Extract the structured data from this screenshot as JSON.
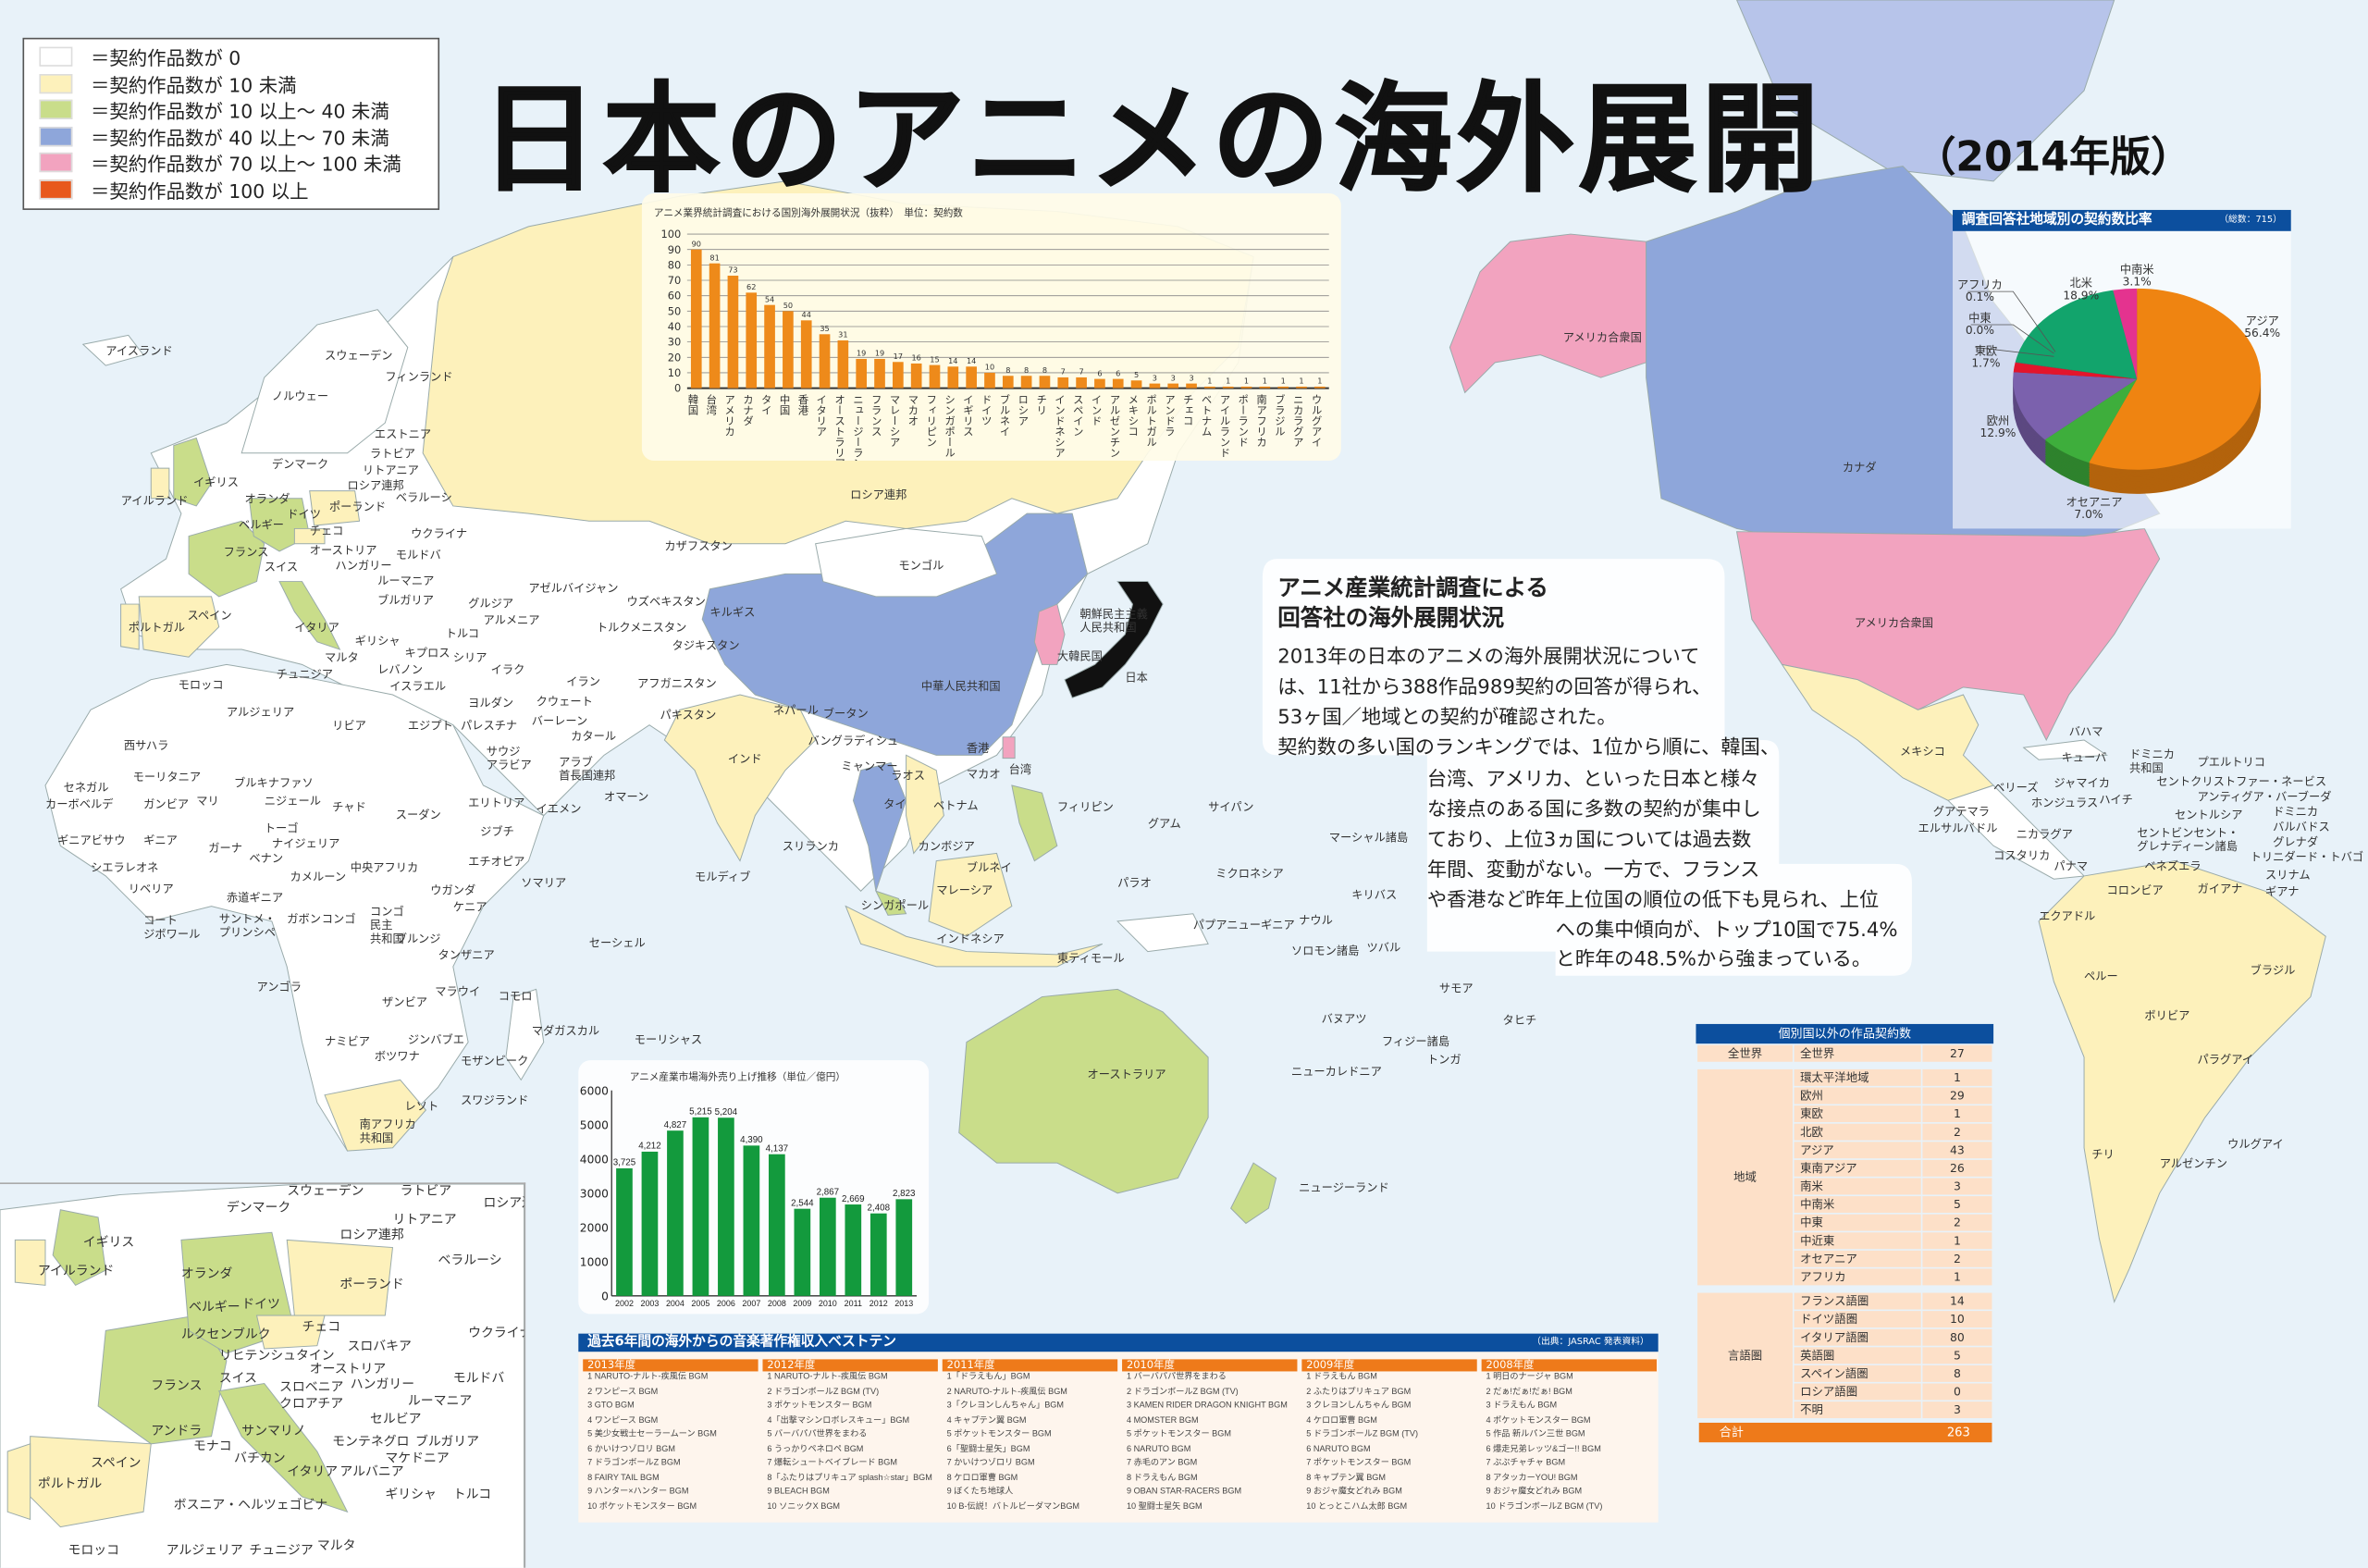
{
  "title": "日本のアニメの海外展開",
  "subtitle": "（2014年版）",
  "colors": {
    "zero": "#ffffff",
    "lt10": "#fdf1bb",
    "10to40": "#c9dd8a",
    "40to70": "#8ea6da",
    "70to100": "#f2a3bf",
    "100plus": "#e8581c",
    "ocean": "#e8f2f9",
    "header_blue": "#0c4f9e",
    "accent_orange": "#ee7a1a"
  },
  "legend": [
    {
      "color": "#ffffff",
      "label": "＝契約作品数が 0"
    },
    {
      "color": "#fdf1bb",
      "label": "＝契約作品数が 10 未満"
    },
    {
      "color": "#c9dd8a",
      "label": "＝契約作品数が 10 以上～ 40 未満"
    },
    {
      "color": "#8ea6da",
      "label": "＝契約作品数が 40 以上～ 70 未満"
    },
    {
      "color": "#f2a3bf",
      "label": "＝契約作品数が 70 以上～ 100 未満"
    },
    {
      "color": "#e8581c",
      "label": "＝契約作品数が 100 以上"
    }
  ],
  "map": {
    "labels": [
      "アイスランド",
      "スウェーデン",
      "ノルウェー",
      "フィンランド",
      "エストニア",
      "デンマーク",
      "ラトビア",
      "リトアニア",
      "ロシア連邦",
      "イギリス",
      "オランダ",
      "アイルランド",
      "ポーランド",
      "ベラルーシ",
      "ベルギー",
      "ドイツ",
      "チェコ",
      "ウクライナ",
      "フランス",
      "オーストリア",
      "スイス",
      "ハンガリー",
      "モルドバ",
      "ルーマニア",
      "スペイン",
      "ポルトガル",
      "イタリア",
      "ブルガリア",
      "ギリシャ",
      "マルタ",
      "チュニジア",
      "モロッコ",
      "アルジェリア",
      "リビア",
      "エジプト",
      "西サハラ",
      "モーリタニア",
      "マリ",
      "ニジェール",
      "チャド",
      "スーダン",
      "セネガル",
      "カーボベルデ",
      "ガンビア",
      "ブルキナファソ",
      "ギニアビサウ",
      "ギニア",
      "ガーナ",
      "トーゴ",
      "ナイジェリア",
      "シエラレオネ",
      "ベナン",
      "リベリア",
      "カメルーン",
      "中央アフリカ",
      "コート ジボワール",
      "赤道ギニア",
      "サントメ・ プリンシペ",
      "ガボン",
      "コンゴ",
      "コンゴ 民主 共和国",
      "ウガンダ",
      "ケニア",
      "エチオピア",
      "ソマリア",
      "ジブチ",
      "エリトリア",
      "イエメン",
      "オマーン",
      "サウジ アラビア",
      "ブルンジ",
      "タンザニア",
      "アンゴラ",
      "マラウイ",
      "ザンビア",
      "コモロ",
      "マダガスカル",
      "ナミビア",
      "ジンバブエ",
      "ボツワナ",
      "モザンビーク",
      "モーリシャス",
      "南アフリカ 共和国",
      "レソト",
      "スワジランド",
      "セーシェル",
      "モルディブ",
      "スリランカ",
      "インド",
      "バングラディシュ",
      "ネパール",
      "ブータン",
      "パキスタン",
      "アフガニスタン",
      "イラン",
      "イラク",
      "シリア",
      "トルコ",
      "キプロス",
      "レバノン",
      "イスラエル",
      "ヨルダン",
      "パレスチナ",
      "クウェート",
      "カタール",
      "バーレーン",
      "アラブ 首長国連邦",
      "アゼルバイジャン",
      "グルジア",
      "アルメニア",
      "トルクメニスタン",
      "ウズベキスタン",
      "キルギス",
      "タジキスタン",
      "カザフスタン",
      "ロシア連邦",
      "モンゴル",
      "中華人民共和国",
      "朝鮮民主主義 人民共和国",
      "大韓民国",
      "日本",
      "香港",
      "マカオ",
      "台湾",
      "ラオス",
      "タイ",
      "ベトナム",
      "ミャンマー",
      "カンボジア",
      "フィリピン",
      "ブルネイ",
      "マレーシア",
      "シンガポール",
      "インドネシア",
      "東ティモール",
      "パプアニューギニア",
      "パラオ",
      "グアム",
      "サイパン",
      "ミクロネシア",
      "マーシャル諸島",
      "キリバス",
      "ナウル",
      "ソロモン諸島",
      "ツバル",
      "サモア",
      "フィジー諸島",
      "バヌアツ",
      "トンガ",
      "タヒチ",
      "ニューカレドニア",
      "オーストラリア",
      "ニュージーランド",
      "アメリカ合衆国",
      "カナダ",
      "アメリカ合衆国",
      "メキシコ",
      "キューバ",
      "バハマ",
      "ドミニカ 共和国",
      "プエルトリコ",
      "ジャマイカ",
      "ハイチ",
      "セントクリストファー・ネービス",
      "アンティグア・バーブーダ",
      "ドミニカ",
      "バルバドス",
      "セントルシア",
      "セントビンセント・ グレナディーン諸島",
      "グレナダ",
      "トリニダード・トバゴ",
      "ベリーズ",
      "ホンジュラス",
      "グアテマラ",
      "エルサルバドル",
      "ニカラグア",
      "コスタリカ",
      "パナマ",
      "ベネズエラ",
      "スリナム",
      "ガイアナ",
      "ギアナ",
      "コロンビア",
      "エクアドル",
      "ペルー",
      "ブラジル",
      "ボリビア",
      "パラグアイ",
      "チリ",
      "アルゼンチン",
      "ウルグアイ"
    ],
    "inset_labels": [
      "スウェーデン",
      "ラトビア",
      "ロシア連邦",
      "デンマーク",
      "リトアニア",
      "ロシア連邦",
      "イギリス",
      "アイルランド",
      "オランダ",
      "ベラルーシ",
      "ポーランド",
      "ベルギー",
      "ドイツ",
      "チェコ",
      "ウクライナ",
      "ルクセンブルク",
      "スロバキア",
      "リヒテンシュタイン",
      "オーストリア",
      "フランス",
      "スイス",
      "ハンガリー",
      "スロベニア",
      "モルドバ",
      "ルーマニア",
      "クロアチア",
      "セルビア",
      "アンドラ",
      "サンマリノ",
      "モナコ",
      "モンテネグロ",
      "ブルガリア",
      "バチカン",
      "マケドニア",
      "スペイン",
      "イタリア",
      "アルバニア",
      "ギリシャ",
      "トルコ",
      "ポルトガル",
      "ボスニア・ヘルツェゴビナ",
      "モロッコ",
      "アルジェリア",
      "チュニジア",
      "マルタ"
    ]
  },
  "info": {
    "title_lines": [
      "アニメ産業統計調査による",
      "回答社の海外展開状況"
    ],
    "lines": [
      "2013年の日本のアニメの海外展開状況について",
      "は、11社から388作品989契約の回答が得られ、",
      "53ヶ国／地域との契約が確認された。",
      "契約数の多い国のランキングでは、1位から順に、韓国、",
      "台湾、アメリカ、といった日本と様々",
      "な接点のある国に多数の契約が集中し",
      "ており、上位3ヵ国については過去数",
      "年間、変動がない。一方で、フランス",
      "や香港など昨年上位国の順位の低下も見られ、上位",
      "への集中傾向が、トップ10国で75.4%",
      "と昨年の48.5%から強まっている。"
    ]
  },
  "chart_data": [
    {
      "type": "bar",
      "title": "アニメ業界統計調査における国別海外展開状況（抜粋）　単位：契約数",
      "categories": [
        "韓国",
        "台湾",
        "アメリカ",
        "カナダ",
        "タイ",
        "中国",
        "香港",
        "イタリア",
        "オーストラリア",
        "ニュージーランド",
        "フランス",
        "マレーシア",
        "マカオ",
        "フィリピン",
        "シンガポール",
        "イギリス",
        "ドイツ",
        "ブルネイ",
        "ロシア",
        "チリ",
        "インドネシア",
        "スペイン",
        "インド",
        "アルゼンチン",
        "メキシコ",
        "ポルトガル",
        "アンドラ",
        "チェコ",
        "ベトナム",
        "アイルランド",
        "ポーランド",
        "南アフリカ",
        "ブラジル",
        "ニカラグア",
        "ウルグアイ"
      ],
      "values": [
        90,
        81,
        73,
        62,
        54,
        50,
        44,
        35,
        31,
        19,
        19,
        17,
        16,
        15,
        14,
        14,
        10,
        8,
        8,
        8,
        7,
        7,
        6,
        6,
        5,
        3,
        3,
        3,
        1,
        1,
        1,
        1,
        1,
        1,
        1
      ],
      "ylim": [
        0,
        100
      ],
      "yticks": [
        0,
        10,
        20,
        30,
        40,
        50,
        60,
        70,
        80,
        90,
        100
      ],
      "grid": true,
      "color": "#ee8a1a"
    },
    {
      "type": "pie",
      "title": "調査回答社地域別の契約数比率",
      "note": "（総数：715）",
      "slices": [
        {
          "label": "アジア",
          "value": 56.4,
          "text": "56.4%",
          "color": "#ef8411"
        },
        {
          "label": "オセアニア",
          "value": 7.0,
          "text": "7.0%",
          "color": "#3eae3c"
        },
        {
          "label": "欧州",
          "value": 12.9,
          "text": "12.9%",
          "color": "#7b61ad"
        },
        {
          "label": "東欧",
          "value": 1.7,
          "text": "1.7%",
          "color": "#e3152b"
        },
        {
          "label": "中東",
          "value": 0.0,
          "text": "0.0%",
          "color": "#999999"
        },
        {
          "label": "アフリカ",
          "value": 0.1,
          "text": "0.1%",
          "color": "#666666"
        },
        {
          "label": "北米",
          "value": 18.9,
          "text": "18.9%",
          "color": "#12a46c"
        },
        {
          "label": "中南米",
          "value": 3.1,
          "text": "3.1%",
          "color": "#e4338f"
        }
      ],
      "style": "3d"
    },
    {
      "type": "bar",
      "title": "アニメ産業市場海外売り上げ推移（単位／億円）",
      "categories": [
        "2002",
        "2003",
        "2004",
        "2005",
        "2006",
        "2007",
        "2008",
        "2009",
        "2010",
        "2011",
        "2012",
        "2013"
      ],
      "values": [
        3725,
        4212,
        4827,
        5215,
        5204,
        4390,
        4137,
        2544,
        2867,
        2669,
        2408,
        2823
      ],
      "value_labels": [
        "3,725",
        "4,212",
        "4,827",
        "5,215",
        "5,204",
        "4,390",
        "4,137",
        "2,544",
        "2,867",
        "2,669",
        "2,408",
        "2,823"
      ],
      "ylim": [
        0,
        6000
      ],
      "yticks": [
        0,
        1000,
        2000,
        3000,
        4000,
        5000,
        6000
      ],
      "color": "#139a3d"
    }
  ],
  "table": {
    "title": "個別国以外の作品契約数",
    "groups": [
      {
        "name": "全世界",
        "rows": [
          [
            "全世界",
            "27"
          ]
        ]
      },
      {
        "name": "地域",
        "rows": [
          [
            "環太平洋地域",
            "1"
          ],
          [
            "欧州",
            "29"
          ],
          [
            "東欧",
            "1"
          ],
          [
            "北欧",
            "2"
          ],
          [
            "アジア",
            "43"
          ],
          [
            "東南アジア",
            "26"
          ],
          [
            "南米",
            "3"
          ],
          [
            "中南米",
            "5"
          ],
          [
            "中東",
            "2"
          ],
          [
            "中近東",
            "1"
          ],
          [
            "オセアニア",
            "2"
          ],
          [
            "アフリカ",
            "1"
          ]
        ]
      },
      {
        "name": "言語圏",
        "rows": [
          [
            "フランス語圏",
            "14"
          ],
          [
            "ドイツ語圏",
            "10"
          ],
          [
            "イタリア語圏",
            "80"
          ],
          [
            "英語圏",
            "5"
          ],
          [
            "スペイン語圏",
            "8"
          ],
          [
            "ロシア語圏",
            "0"
          ],
          [
            "不明",
            "3"
          ]
        ]
      }
    ],
    "total_label": "合計",
    "total_value": "263"
  },
  "ranking": {
    "title": "過去6年間の海外からの音楽著作権収入ベストテン",
    "source": "（出典：JASRAC 発表資料）",
    "columns": [
      {
        "year": "2013年度",
        "items": [
          "1 NARUTO-ナルト-疾風伝 BGM",
          "2 ワンピース BGM",
          "3 GTO BGM",
          "4 ワンピース BGM",
          "5 美少女戦士セーラームーン BGM",
          "6 かいけつゾロリ BGM",
          "7 ドラゴンボールZ BGM",
          "8 FAIRY TAIL BGM",
          "9 ハンター×ハンター BGM",
          "10 ポケットモンスター BGM"
        ]
      },
      {
        "year": "2012年度",
        "items": [
          "1 NARUTO-ナルト-疾風伝 BGM",
          "2 ドラゴンボールZ BGM (TV)",
          "3 ポケットモンスター BGM",
          "4「出撃マシンロボレスキュー」BGM",
          "5 バーバパパ世界をまわる",
          "6 うっかりペネロペ BGM",
          "7 爆転シュートベイブレード BGM",
          "8「ふたりはプリキュア splash☆star」BGM",
          "9 BLEACH BGM",
          "10 ソニックX BGM"
        ]
      },
      {
        "year": "2011年度",
        "items": [
          "1「ドラえもん」BGM",
          "2 NARUTO-ナルト-疾風伝 BGM",
          "3「クレヨンしんちゃん」BGM",
          "4 キャプテン翼 BGM",
          "5 ポケットモンスター BGM",
          "6「聖闘士星矢」BGM",
          "7 かいけつゾロリ BGM",
          "8 ケロロ軍曹 BGM",
          "9 ぼくたち地球人",
          "10 B-伝説！バトルビーダマンBGM"
        ]
      },
      {
        "year": "2010年度",
        "items": [
          "1 バーバパパ世界をまわる",
          "2 ドラゴンボールZ BGM (TV)",
          "3 KAMEN RIDER DRAGON KNIGHT BGM",
          "4 MOMSTER BGM",
          "5 ポケットモンスター BGM",
          "6 NARUTO BGM",
          "7 赤毛のアン BGM",
          "8 ドラえもん BGM",
          "9 OBAN STAR-RACERS BGM",
          "10 聖闘士星矢 BGM"
        ]
      },
      {
        "year": "2009年度",
        "items": [
          "1 ドラえもん BGM",
          "2 ふたりはプリキュア BGM",
          "3 クレヨンしんちゃん BGM",
          "4 ケロロ軍曹 BGM",
          "5 ドラゴンボールZ BGM (TV)",
          "6 NARUTO BGM",
          "7 ポケットモンスター BGM",
          "8 キャプテン翼 BGM",
          "9 おジャ魔女どれみ BGM",
          "10 とっとこハム太郎 BGM"
        ]
      },
      {
        "year": "2008年度",
        "items": [
          "1 明日のナージャ BGM",
          "2 だぁ!だぁ!だぁ! BGM",
          "3 ドラえもん BGM",
          "4 ポケットモンスター BGM",
          "5 作品 新ルパン三世 BGM",
          "6 爆走兄弟レッツ&ゴー!! BGM",
          "7 ぷぷチャチャ BGM",
          "8 アタッカーYOU! BGM",
          "9 おジャ魔女どれみ BGM",
          "10 ドラゴンボールZ BGM (TV)"
        ]
      }
    ]
  }
}
